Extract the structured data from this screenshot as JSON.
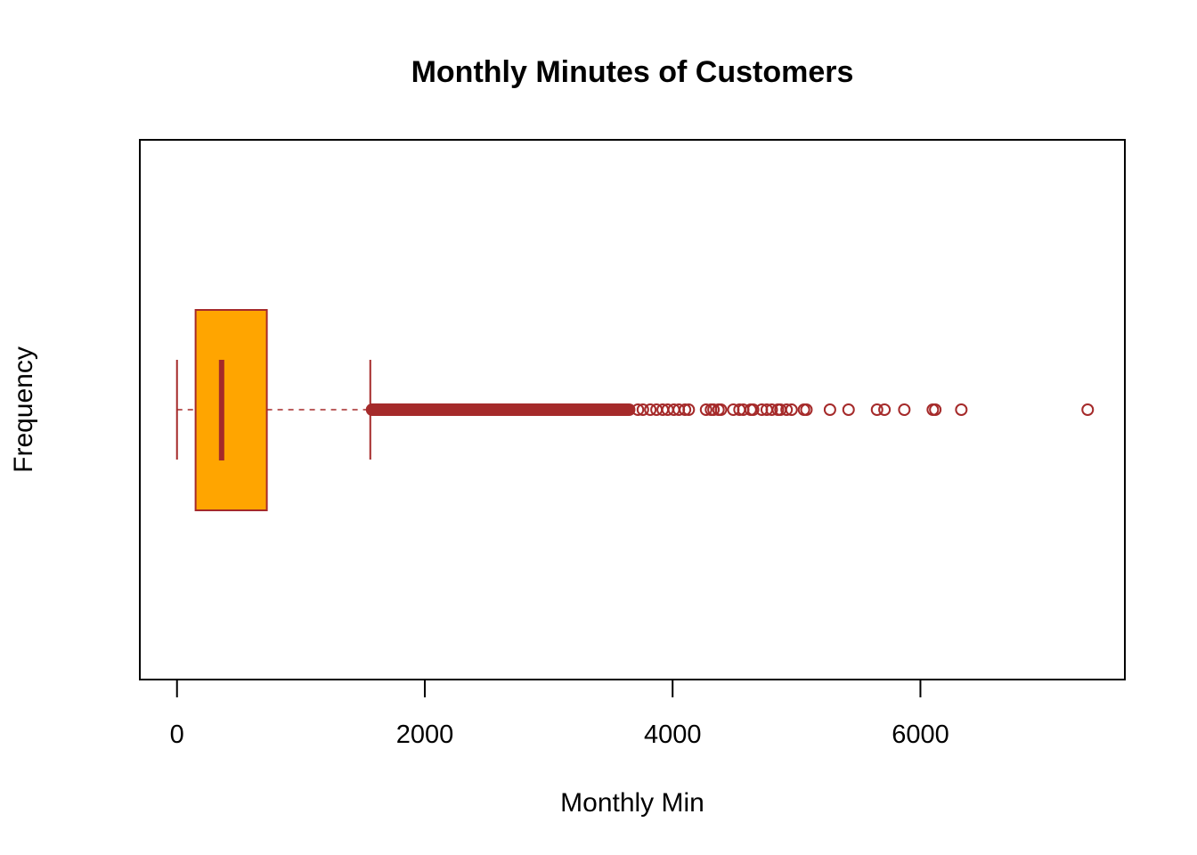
{
  "chart_data": {
    "type": "boxplot",
    "orientation": "horizontal",
    "title": "Monthly Minutes of Customers",
    "xlabel": "Monthly Min",
    "ylabel": "Frequency",
    "xlim": [
      -300,
      7650
    ],
    "x_ticks": [
      0,
      2000,
      4000,
      6000
    ],
    "x_tick_labels": [
      "0",
      "2000",
      "4000",
      "6000"
    ],
    "grid": false,
    "legend": "none",
    "box": {
      "whisker_low": 0,
      "q1": 150,
      "median": 360,
      "q3": 725,
      "whisker_high": 1560
    },
    "outliers_dense_range": [
      1560,
      3700
    ],
    "outliers": [
      3720,
      3760,
      3820,
      3870,
      3920,
      3960,
      4010,
      4050,
      4100,
      4130,
      4270,
      4310,
      4330,
      4370,
      4390,
      4490,
      4540,
      4570,
      4630,
      4650,
      4720,
      4760,
      4800,
      4850,
      4870,
      4920,
      4960,
      5060,
      5080,
      5270,
      5420,
      5650,
      5710,
      5870,
      6100,
      6120,
      6330,
      7350
    ],
    "colors": {
      "box_fill": "#FFA500",
      "box_border": "#A52A2A",
      "outlier": "#A52A2A"
    }
  }
}
